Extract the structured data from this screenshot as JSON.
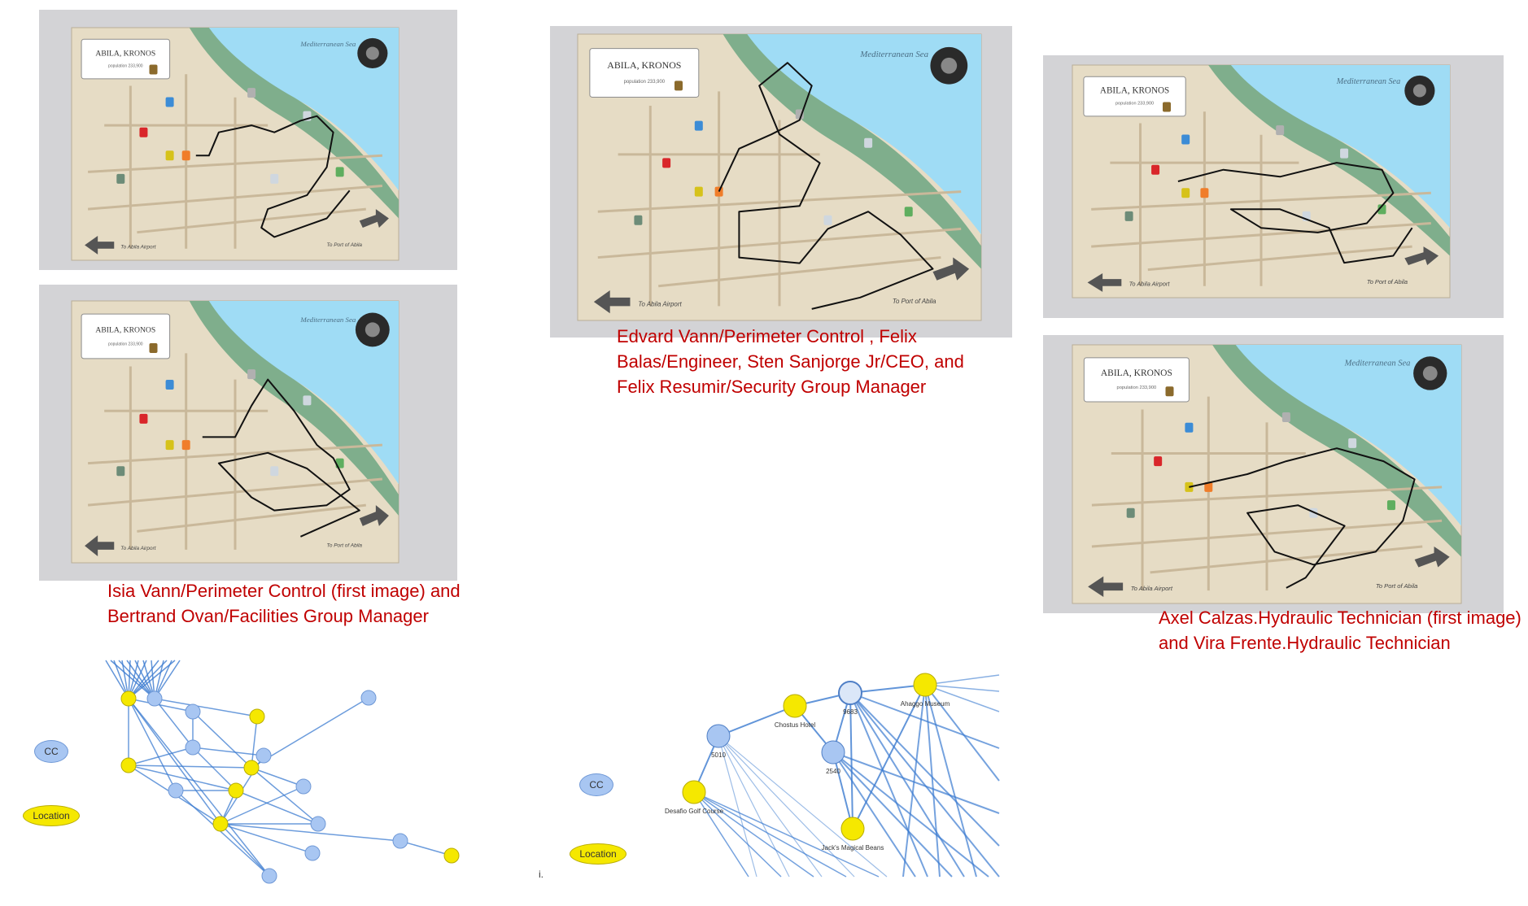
{
  "map": {
    "title": "ABILA, KRONOS",
    "population": "population 233,900",
    "sea_label": "Mediterranean Sea",
    "airport_label": "To Abila Airport",
    "port_label": "To Port of Abila",
    "colors": {
      "sea": "#9fdcf5",
      "land": "#e6dcc5",
      "park": "#7fae8c",
      "road": "#c9b89a",
      "route": "#111111",
      "frame": "#d3d3d6"
    }
  },
  "captions": {
    "left": "Isia Vann/Perimeter Control (first image) and\nBertrand Ovan/Facilities Group Manager",
    "center": "Edvard Vann/Perimeter Control , Felix\nBalas/Engineer, Sten Sanjorge Jr/CEO, and\nFelix Resumir/Security Group Manager",
    "right": "Axel Calzas.Hydraulic Technician (first image)\nand Vira Frente.Hydraulic Technician"
  },
  "legend": {
    "cc": "CC",
    "location": "Location"
  },
  "graph_right": {
    "labels": {
      "n9683": "9683",
      "anaggo": "Ahaggo Museum",
      "chostus": "Chostus Hotel",
      "n5010": "5010",
      "n2540": "2540",
      "desafio": "Desafio Golf Course",
      "jacks": "Jack's Magical Beans"
    }
  },
  "stray_text": "i.",
  "colors": {
    "cc_node": "#a8c6f2",
    "location_node": "#f5e800",
    "edge": "#3b7bd0",
    "caption": "#c00000"
  }
}
